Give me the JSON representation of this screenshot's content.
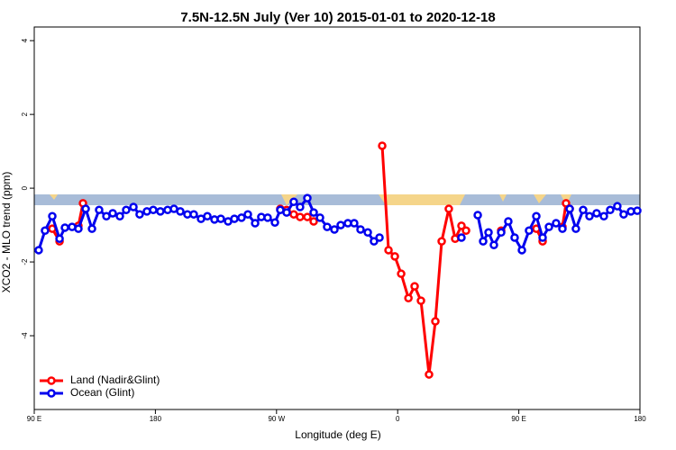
{
  "chart_data": {
    "type": "line",
    "title": "7.5N-12.5N July (Ver 10)   2015-01-01 to 2020-12-18",
    "x_label": "Longitude (deg E)",
    "y_label": "XCO2 - MLO trend (ppm)",
    "xlim": [
      90,
      540
    ],
    "ylim": [
      -6,
      4.37
    ],
    "xticks": [
      {
        "value": 90,
        "label": "90 E"
      },
      {
        "value": 180,
        "label": "180"
      },
      {
        "value": 270,
        "label": "90 W"
      },
      {
        "value": 360,
        "label": "0"
      },
      {
        "value": 450,
        "label": "90 E"
      },
      {
        "value": 540,
        "label": "180"
      }
    ],
    "yticks": [
      -4,
      -2,
      0,
      2,
      4
    ],
    "legend": "bottom-left",
    "series": [
      {
        "name": "Land (Nadir&Glint)",
        "color": "#ff0000",
        "x": [
          103.4,
          108.8,
          115,
          122.8,
          126.2,
          200,
          272.8,
          277.5,
          282.8,
          287.5,
          292.9,
          297.6,
          320,
          348.5,
          353.2,
          357.9,
          362.6,
          368.0,
          372.6,
          377.3,
          383.3,
          388.0,
          392.7,
          398.0,
          402.7,
          407.4,
          410.8,
          420,
          436.9,
          450,
          463.0,
          467.7,
          475,
          482.4,
          485.1,
          487.8
        ],
        "values": [
          -1.1,
          -1.44,
          null,
          -1.02,
          -0.41,
          null,
          -0.56,
          -0.59,
          -0.71,
          -0.78,
          -0.78,
          -0.9,
          null,
          1.15,
          -1.68,
          -1.85,
          -2.32,
          -2.98,
          -2.66,
          -3.05,
          -5.05,
          -3.61,
          -1.44,
          -0.56,
          -1.37,
          -1.02,
          -1.15,
          null,
          -1.15,
          null,
          -1.1,
          -1.44,
          null,
          -1.05,
          -0.41,
          -0.56
        ]
      },
      {
        "name": "Ocean (Glint)",
        "color": "#0000ee",
        "x": [
          93.3,
          98.0,
          103.4,
          108.8,
          112.8,
          118.1,
          122.8,
          128.2,
          132.9,
          138.2,
          143.6,
          148.3,
          153.6,
          158.3,
          163.7,
          168.3,
          173.7,
          178.4,
          183.7,
          189.1,
          193.8,
          198.5,
          203.8,
          208.5,
          213.9,
          218.6,
          223.9,
          228.6,
          234.0,
          238.7,
          244.0,
          248.7,
          254.1,
          258.7,
          263.4,
          268.8,
          272.8,
          277.5,
          282.8,
          287.5,
          292.9,
          297.6,
          302.3,
          307.6,
          313.0,
          317.7,
          323.0,
          327.7,
          332.4,
          337.8,
          342.4,
          346.5,
          380,
          407.4,
          415,
          419.5,
          423.5,
          427.5,
          431.5,
          436.9,
          442.2,
          446.9,
          452.3,
          457.6,
          463.0,
          467.7,
          472.4,
          477.7,
          482.4,
          487.8,
          492.4,
          497.8,
          502.5,
          507.8,
          513.2,
          517.9,
          523.2,
          527.9,
          533.3,
          538.0
        ],
        "values": [
          -1.68,
          -1.15,
          -0.76,
          -1.37,
          -1.07,
          -1.05,
          -1.1,
          -0.56,
          -1.1,
          -0.59,
          -0.76,
          -0.68,
          -0.76,
          -0.59,
          -0.51,
          -0.71,
          -0.63,
          -0.59,
          -0.63,
          -0.59,
          -0.56,
          -0.63,
          -0.71,
          -0.71,
          -0.83,
          -0.76,
          -0.85,
          -0.83,
          -0.9,
          -0.83,
          -0.8,
          -0.71,
          -0.95,
          -0.78,
          -0.8,
          -0.93,
          -0.59,
          -0.66,
          -0.37,
          -0.51,
          -0.27,
          -0.66,
          -0.8,
          -1.05,
          -1.12,
          -1.0,
          -0.95,
          -0.95,
          -1.12,
          -1.2,
          -1.44,
          -1.34,
          null,
          -1.34,
          null,
          -0.73,
          -1.44,
          -1.2,
          -1.54,
          -1.2,
          -0.9,
          -1.34,
          -1.68,
          -1.15,
          -0.76,
          -1.34,
          -1.05,
          -0.95,
          -1.1,
          -0.56,
          -1.1,
          -0.59,
          -0.76,
          -0.68,
          -0.76,
          -0.59,
          -0.49,
          -0.71,
          -0.63,
          -0.61
        ]
      }
    ]
  }
}
